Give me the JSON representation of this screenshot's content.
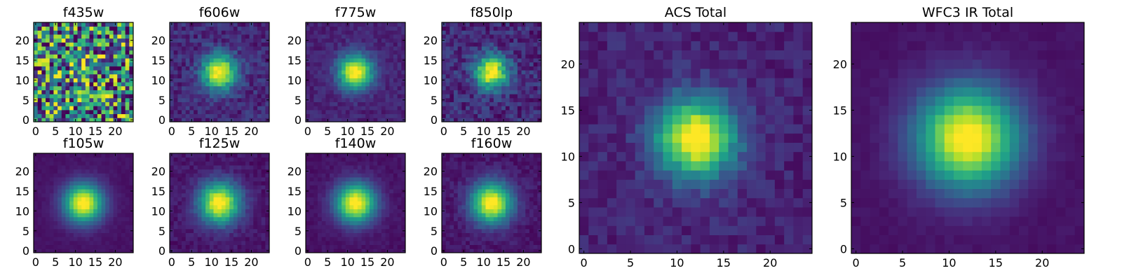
{
  "chart_data": [
    {
      "type": "heatmap",
      "title": "f435w",
      "xlim": [
        0,
        24
      ],
      "ylim": [
        0,
        24
      ],
      "xticks": [
        0,
        5,
        10,
        15,
        20
      ],
      "yticks": [
        0,
        5,
        10,
        15,
        20
      ],
      "colormap": "viridis",
      "peak": [
        12,
        12
      ],
      "sigma": 1.6,
      "noise": 0.55,
      "bg": 0.45
    },
    {
      "type": "heatmap",
      "title": "f606w",
      "xlim": [
        0,
        24
      ],
      "ylim": [
        0,
        24
      ],
      "xticks": [
        0,
        5,
        10,
        15,
        20
      ],
      "yticks": [
        0,
        5,
        10,
        15,
        20
      ],
      "colormap": "viridis",
      "peak": [
        12,
        12
      ],
      "sigma": 3.0,
      "noise": 0.1,
      "bg": 0.12
    },
    {
      "type": "heatmap",
      "title": "f775w",
      "xlim": [
        0,
        24
      ],
      "ylim": [
        0,
        24
      ],
      "xticks": [
        0,
        5,
        10,
        15,
        20
      ],
      "yticks": [
        0,
        5,
        10,
        15,
        20
      ],
      "colormap": "viridis",
      "peak": [
        12,
        12
      ],
      "sigma": 3.0,
      "noise": 0.06,
      "bg": 0.1
    },
    {
      "type": "heatmap",
      "title": "f850lp",
      "xlim": [
        0,
        24
      ],
      "ylim": [
        0,
        24
      ],
      "xticks": [
        0,
        5,
        10,
        15,
        20
      ],
      "yticks": [
        0,
        5,
        10,
        15,
        20
      ],
      "colormap": "viridis",
      "peak": [
        12,
        12
      ],
      "sigma": 2.9,
      "noise": 0.12,
      "bg": 0.12
    },
    {
      "type": "heatmap",
      "title": "ACS Total",
      "xlim": [
        0,
        24
      ],
      "ylim": [
        0,
        24
      ],
      "xticks": [
        0,
        5,
        10,
        15,
        20
      ],
      "yticks": [
        0,
        5,
        10,
        15,
        20
      ],
      "colormap": "viridis",
      "peak": [
        12,
        12
      ],
      "sigma": 3.0,
      "noise": 0.07,
      "bg": 0.1
    },
    {
      "type": "heatmap",
      "title": "WFC3 IR Total",
      "xlim": [
        0,
        24
      ],
      "ylim": [
        0,
        24
      ],
      "xticks": [
        0,
        5,
        10,
        15,
        20
      ],
      "yticks": [
        0,
        5,
        10,
        15,
        20
      ],
      "colormap": "viridis",
      "peak": [
        12,
        12
      ],
      "sigma": 3.8,
      "noise": 0.02,
      "bg": 0.05
    },
    {
      "type": "heatmap",
      "title": "f105w",
      "xlim": [
        0,
        24
      ],
      "ylim": [
        0,
        24
      ],
      "xticks": [
        0,
        5,
        10,
        15,
        20
      ],
      "yticks": [
        0,
        5,
        10,
        15,
        20
      ],
      "colormap": "viridis",
      "peak": [
        12,
        12
      ],
      "sigma": 3.4,
      "noise": 0.02,
      "bg": 0.05
    },
    {
      "type": "heatmap",
      "title": "f125w",
      "xlim": [
        0,
        24
      ],
      "ylim": [
        0,
        24
      ],
      "xticks": [
        0,
        5,
        10,
        15,
        20
      ],
      "yticks": [
        0,
        5,
        10,
        15,
        20
      ],
      "colormap": "viridis",
      "peak": [
        12,
        12
      ],
      "sigma": 3.6,
      "noise": 0.05,
      "bg": 0.06
    },
    {
      "type": "heatmap",
      "title": "f140w",
      "xlim": [
        0,
        24
      ],
      "ylim": [
        0,
        24
      ],
      "xticks": [
        0,
        5,
        10,
        15,
        20
      ],
      "yticks": [
        0,
        5,
        10,
        15,
        20
      ],
      "colormap": "viridis",
      "peak": [
        12,
        12
      ],
      "sigma": 3.5,
      "noise": 0.03,
      "bg": 0.05
    },
    {
      "type": "heatmap",
      "title": "f160w",
      "xlim": [
        0,
        24
      ],
      "ylim": [
        0,
        24
      ],
      "xticks": [
        0,
        5,
        10,
        15,
        20
      ],
      "yticks": [
        0,
        5,
        10,
        15,
        20
      ],
      "colormap": "viridis",
      "peak": [
        12,
        12
      ],
      "sigma": 3.6,
      "noise": 0.05,
      "bg": 0.06
    }
  ]
}
